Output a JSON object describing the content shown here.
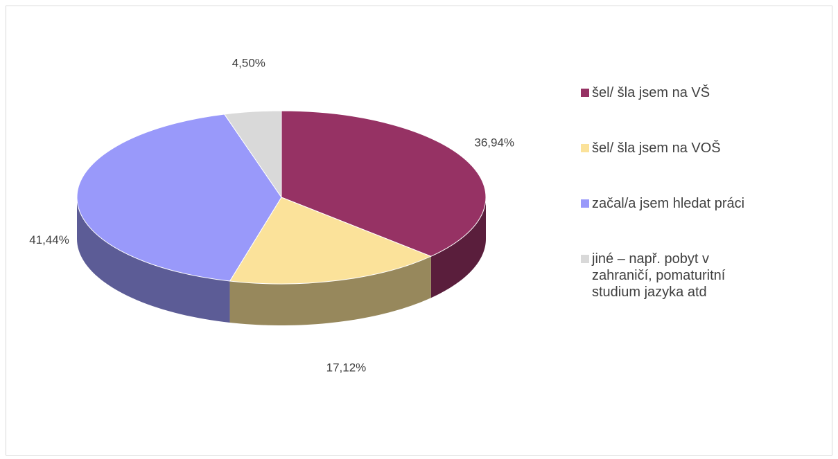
{
  "chart_data": {
    "type": "pie3d",
    "categories": [
      "šel/ šla jsem na VŠ",
      "šel/ šla jsem na VOŠ",
      "začal/a jsem hledat práci",
      "jiné – např. pobyt v zahraničí, pomaturitní studium jazyka atd"
    ],
    "values": [
      36.94,
      17.12,
      41.44,
      4.5
    ],
    "value_labels": [
      "36,94%",
      "17,12%",
      "41,44%",
      "4,50%"
    ],
    "colors": [
      "#963264",
      "#fbe29a",
      "#9999fa",
      "#d9d9d9"
    ],
    "legend": "right"
  }
}
